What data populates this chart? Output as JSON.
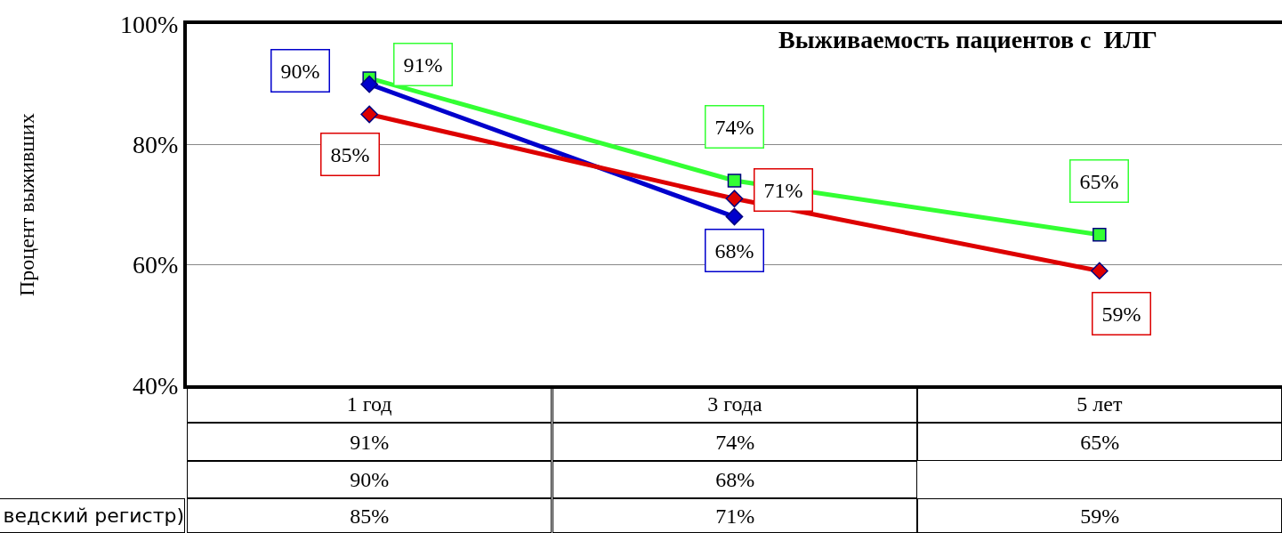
{
  "chart_data": {
    "type": "line",
    "title": "Выживаемость пациентов с  ИЛГ",
    "ylabel": "Процент выживших",
    "categories": [
      "1 год",
      "3 года",
      "5 лет"
    ],
    "series": [
      {
        "color": "#33ff33",
        "marker": "square",
        "values": [
          91,
          74,
          65
        ],
        "value_labels": [
          "91%",
          "74%",
          "65%"
        ]
      },
      {
        "color": "#0000cc",
        "marker": "diamond",
        "values": [
          90,
          68,
          null
        ],
        "value_labels": [
          "90%",
          "68%",
          null
        ]
      },
      {
        "name": "ведский регистр)",
        "color": "#dd0000",
        "marker": "diamond",
        "values": [
          85,
          71,
          59
        ],
        "value_labels": [
          "85%",
          "71%",
          "59%"
        ]
      }
    ],
    "ylim": [
      40,
      100
    ],
    "yticks": [
      {
        "value": 40,
        "label": "40%"
      },
      {
        "value": 60,
        "label": "60%"
      },
      {
        "value": 80,
        "label": "80%"
      },
      {
        "value": 100,
        "label": "100%"
      }
    ],
    "grid": "y",
    "legend": false
  }
}
